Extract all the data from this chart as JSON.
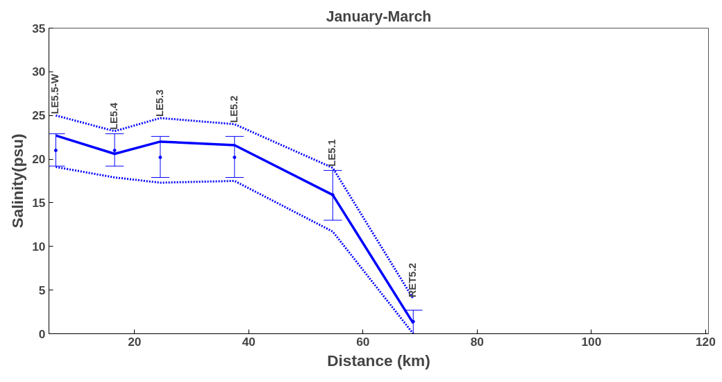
{
  "chart_data": {
    "type": "line",
    "title": "January-March",
    "xlabel": "Distance (km)",
    "ylabel": "Salinity(psu)",
    "xlim": [
      5,
      120.5
    ],
    "xticks": [
      20,
      40,
      60,
      80,
      100,
      120
    ],
    "ylim": [
      0,
      35
    ],
    "yticks": [
      0,
      5,
      10,
      15,
      20,
      25,
      30,
      35
    ],
    "grid": false,
    "x": [
      6.2,
      16.5,
      24.5,
      37.5,
      54.7,
      68.8
    ],
    "series": [
      {
        "line_style": "solid",
        "color": "#0000ff",
        "values": [
          22.7,
          20.6,
          22.0,
          21.6,
          15.9,
          1.2
        ]
      },
      {
        "type": "line",
        "line_style": "dotted",
        "color": "#0000ff",
        "values": [
          25.0,
          23.2,
          24.7,
          24.0,
          19.0,
          4.0
        ]
      },
      {
        "type": "line",
        "line_style": "dotted",
        "color": "#0000ff",
        "values": [
          19.1,
          17.9,
          17.3,
          17.5,
          11.7,
          0
        ]
      },
      {
        "type": "scatter",
        "marker": "circle",
        "color": "#0000ff",
        "values": [
          21.0,
          21.0,
          20.2,
          20.2,
          15.9,
          1.4
        ],
        "errors": [
          [
            19.2,
            22.9
          ],
          [
            19.2,
            22.9
          ],
          [
            17.9,
            22.6
          ],
          [
            17.9,
            22.6
          ],
          [
            13.0,
            18.7
          ],
          [
            0,
            2.7
          ]
        ]
      }
    ],
    "annotations": [
      {
        "text": "LE5.5-W",
        "x": 6.2,
        "y": 25.0
      },
      {
        "text": "LE5.4",
        "x": 16.5,
        "y": 23.2
      },
      {
        "text": "LE5.3",
        "x": 24.5,
        "y": 24.7
      },
      {
        "text": "LE5.2",
        "x": 37.5,
        "y": 24.0
      },
      {
        "text": "LE5.1",
        "x": 54.7,
        "y": 19.0
      },
      {
        "text": "RET5.2",
        "x": 68.8,
        "y": 4.0
      }
    ]
  }
}
